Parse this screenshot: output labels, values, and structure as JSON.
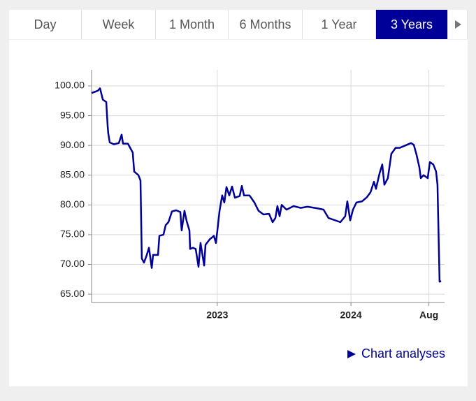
{
  "tabs": [
    "Day",
    "Week",
    "1 Month",
    "6 Months",
    "1 Year",
    "3 Years"
  ],
  "active_tab": 5,
  "link": "Chart analyses",
  "chart_data": {
    "type": "line",
    "color": "#000099",
    "grid": true,
    "xlim": [
      2022.06,
      2024.7
    ],
    "ylim": [
      63.6,
      102.7
    ],
    "xticks": [
      2023,
      2024,
      {
        "value": 2024.583,
        "label": "Aug"
      }
    ],
    "yticks": [
      {
        "value": 65,
        "label": "65.00"
      },
      {
        "value": 70,
        "label": "70.00"
      },
      {
        "value": 75,
        "label": "75.00"
      },
      {
        "value": 80,
        "label": "80.00"
      },
      {
        "value": 85,
        "label": "85.00"
      },
      {
        "value": 90,
        "label": "90.00"
      },
      {
        "value": 95,
        "label": "95.00"
      },
      {
        "value": 100,
        "label": "100.00"
      }
    ],
    "x": [
      2022.06,
      2022.107,
      2022.123,
      2022.144,
      2022.17,
      2022.18,
      2022.185,
      2022.196,
      2022.227,
      2022.264,
      2022.285,
      2022.295,
      2022.332,
      2022.368,
      2022.379,
      2022.41,
      2022.426,
      2022.436,
      2022.452,
      2022.473,
      2022.489,
      2022.51,
      2022.52,
      2022.557,
      2022.567,
      2022.598,
      2022.614,
      2022.635,
      2022.661,
      2022.692,
      2022.724,
      2022.734,
      2022.755,
      2022.771,
      2022.792,
      2022.797,
      2022.818,
      2022.839,
      2022.86,
      2022.875,
      2022.902,
      2022.912,
      2022.943,
      2022.975,
      2022.99,
      2023.001,
      2023.017,
      2023.037,
      2023.053,
      2023.069,
      2023.09,
      2023.111,
      2023.132,
      2023.168,
      2023.184,
      2023.2,
      2023.241,
      2023.278,
      2023.309,
      2023.346,
      2023.388,
      2023.414,
      2023.435,
      2023.45,
      2023.466,
      2023.482,
      2023.518,
      2023.571,
      2023.623,
      2023.675,
      2023.754,
      2023.795,
      2023.832,
      2023.884,
      2023.921,
      2023.957,
      2023.973,
      2023.994,
      2024.015,
      2024.041,
      2024.083,
      2024.119,
      2024.146,
      2024.172,
      2024.187,
      2024.214,
      2024.234,
      2024.25,
      2024.276,
      2024.302,
      2024.334,
      2024.365,
      2024.407,
      2024.449,
      2024.47,
      2024.491,
      2024.512,
      2024.522,
      2024.543,
      2024.574,
      2024.59,
      2024.616,
      2024.637,
      2024.647,
      2024.663,
      2024.674
    ],
    "values": [
      98.8,
      99.2,
      99.6,
      97.7,
      97.3,
      93.3,
      92,
      90.5,
      90.2,
      90.4,
      91.8,
      90.3,
      90.3,
      88.8,
      85.6,
      85,
      84.1,
      71,
      70.3,
      71.6,
      72.8,
      69.4,
      71.6,
      71.6,
      74.8,
      75.0,
      76.6,
      77.1,
      78.9,
      79.1,
      78.8,
      75.7,
      79,
      77.3,
      75.7,
      72.6,
      72.8,
      72.6,
      69.6,
      73.6,
      69.8,
      73.3,
      74.2,
      74.8,
      73.6,
      75.7,
      79,
      81.6,
      80.4,
      83,
      81.6,
      83.1,
      81.2,
      81.5,
      83.2,
      81.6,
      81.6,
      80.4,
      79,
      78.4,
      78.5,
      77.1,
      77.8,
      79.8,
      78.1,
      80,
      79.2,
      79.8,
      79.5,
      79.7,
      79.4,
      79.2,
      77.8,
      77.4,
      77.1,
      78.1,
      80.6,
      77.4,
      79.2,
      80.4,
      80.6,
      81.3,
      82.1,
      83.9,
      82.7,
      85.3,
      86.8,
      83.4,
      84.5,
      88.6,
      89.6,
      89.6,
      90.0,
      90.4,
      90.1,
      88.4,
      86.3,
      84.5,
      85,
      84.5,
      87.2,
      86.8,
      85.6,
      83.4,
      67.1,
      67.2
    ]
  }
}
